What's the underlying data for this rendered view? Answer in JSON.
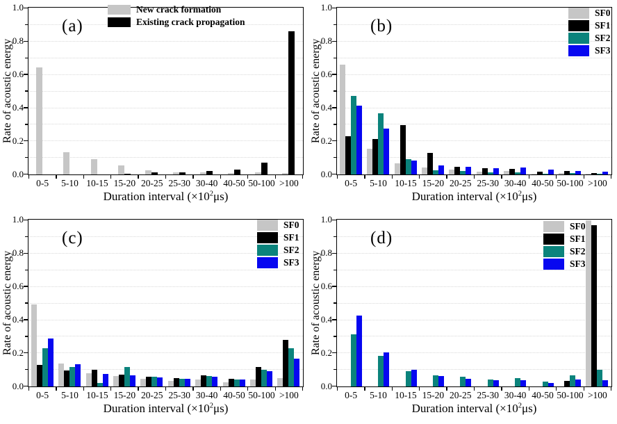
{
  "figure": {
    "ylabel": "Rate of acoustic energy",
    "xlabel": "Duration interval (×10²μs)",
    "xlabel_parts": {
      "pre": "Duration interval (×10",
      "sup": "2",
      "post": "μs)"
    },
    "yticks": [
      "0.0",
      "0.2",
      "0.4",
      "0.6",
      "0.8",
      "1.0"
    ]
  },
  "colors": {
    "gray": "#c6c6c6",
    "black": "#000000",
    "teal": "#0b837c",
    "blue": "#0707f0",
    "grid": "#d8d8d8",
    "frame": "#000000"
  },
  "chart_data": [
    {
      "id": "a",
      "label": "(a)",
      "type": "bar",
      "ylim": [
        0,
        1.0
      ],
      "grid": "dotted horizontal every 0.1",
      "legend_pos": "top-center",
      "categories": [
        "0-5",
        "5-10",
        "10-15",
        "15-20",
        "20-25",
        "25-30",
        "30-40",
        "40-50",
        "50-100",
        ">100"
      ],
      "series": [
        {
          "name": "New crack formation",
          "color": "gray",
          "values": [
            0.645,
            0.135,
            0.09,
            0.053,
            0.026,
            0.013,
            0.014,
            0.008,
            0.012,
            0.01
          ]
        },
        {
          "name": "Existing crack propagation",
          "color": "black",
          "values": [
            0,
            0,
            0,
            0.005,
            0.011,
            0.013,
            0.022,
            0.031,
            0.07,
            0.86
          ]
        }
      ]
    },
    {
      "id": "b",
      "label": "(b)",
      "type": "bar",
      "ylim": [
        0,
        1.0
      ],
      "grid": "dotted horizontal every 0.1",
      "legend_pos": "top-right",
      "categories": [
        "0-5",
        "5-10",
        "10-15",
        "15-20",
        "20-25",
        "25-30",
        "30-40",
        "40-50",
        "50-100",
        ">100"
      ],
      "series": [
        {
          "name": "SF0",
          "color": "gray",
          "values": [
            0.66,
            0.155,
            0.065,
            0.042,
            0.03,
            0.016,
            0.02,
            0.006,
            0.008,
            0.004
          ]
        },
        {
          "name": "SF1",
          "color": "black",
          "values": [
            0.232,
            0.212,
            0.295,
            0.13,
            0.047,
            0.036,
            0.033,
            0.015,
            0.02,
            0.01
          ]
        },
        {
          "name": "SF2",
          "color": "teal",
          "values": [
            0.472,
            0.37,
            0.09,
            0.024,
            0.02,
            0.013,
            0.011,
            0.006,
            0.008,
            0.004
          ]
        },
        {
          "name": "SF3",
          "color": "blue",
          "values": [
            0.415,
            0.275,
            0.083,
            0.053,
            0.045,
            0.036,
            0.043,
            0.028,
            0.022,
            0.016
          ]
        }
      ]
    },
    {
      "id": "c",
      "label": "(c)",
      "type": "bar",
      "ylim": [
        0,
        1.0
      ],
      "grid": "dotted horizontal every 0.1",
      "legend_pos": "top-right",
      "categories": [
        "0-5",
        "5-10",
        "10-15",
        "15-20",
        "20-25",
        "25-30",
        "30-40",
        "40-50",
        "50-100",
        ">100"
      ],
      "series": [
        {
          "name": "SF0",
          "color": "gray",
          "values": [
            0.495,
            0.14,
            0.079,
            0.063,
            0.048,
            0.035,
            0.04,
            0.024,
            0.042,
            0.05
          ]
        },
        {
          "name": "SF1",
          "color": "black",
          "values": [
            0.128,
            0.098,
            0.1,
            0.073,
            0.06,
            0.05,
            0.066,
            0.046,
            0.118,
            0.28
          ]
        },
        {
          "name": "SF2",
          "color": "teal",
          "values": [
            0.228,
            0.118,
            0.023,
            0.116,
            0.058,
            0.046,
            0.063,
            0.042,
            0.1,
            0.23
          ]
        },
        {
          "name": "SF3",
          "color": "blue",
          "values": [
            0.288,
            0.132,
            0.077,
            0.066,
            0.056,
            0.046,
            0.06,
            0.04,
            0.092,
            0.166
          ]
        }
      ]
    },
    {
      "id": "d",
      "label": "(d)",
      "type": "bar",
      "ylim": [
        0,
        1.0
      ],
      "grid": "dotted horizontal every 0.1",
      "legend_pos": "top-right",
      "categories": [
        "0-5",
        "5-10",
        "10-15",
        "15-20",
        "20-25",
        "25-30",
        "30-40",
        "40-50",
        "50-100",
        ">100"
      ],
      "series": [
        {
          "name": "SF0",
          "color": "gray",
          "values": [
            0,
            0,
            0,
            0,
            0,
            0,
            0,
            0,
            0,
            1.0
          ]
        },
        {
          "name": "SF1",
          "color": "black",
          "values": [
            0,
            0,
            0,
            0,
            0,
            0,
            0,
            0,
            0.032,
            0.97
          ]
        },
        {
          "name": "SF2",
          "color": "teal",
          "values": [
            0.315,
            0.182,
            0.092,
            0.065,
            0.059,
            0.043,
            0.051,
            0.03,
            0.068,
            0.1
          ]
        },
        {
          "name": "SF3",
          "color": "blue",
          "values": [
            0.425,
            0.203,
            0.099,
            0.063,
            0.048,
            0.036,
            0.038,
            0.022,
            0.04,
            0.038
          ]
        }
      ]
    }
  ]
}
